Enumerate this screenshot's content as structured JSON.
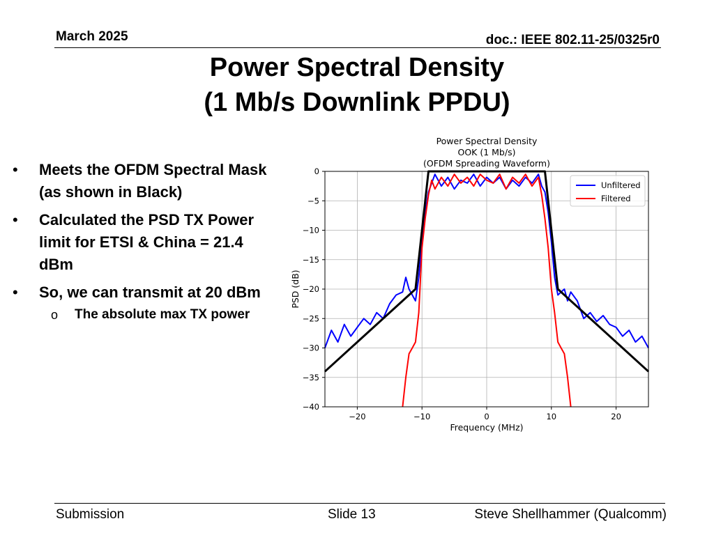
{
  "header": {
    "date": "March 2025",
    "doc": "doc.: IEEE 802.11-25/0325r0"
  },
  "slide": {
    "title_line1": "Power Spectral Density",
    "title_line2": "(1 Mb/s Downlink PPDU)"
  },
  "bullets": [
    "Meets the OFDM Spectral Mask (as shown in Black)",
    "Calculated the PSD TX Power limit for ETSI & China = 21.4 dBm",
    "So, we can transmit at 20 dBm"
  ],
  "sub_bullet": "The absolute max TX power",
  "bullet_glyph": "•",
  "sub_glyph": "o",
  "chart_data": {
    "type": "line",
    "title": [
      "Power Spectral Density",
      "OOK (1 Mb/s)",
      "(OFDM Spreading Waveform)"
    ],
    "xlabel": "Frequency (MHz)",
    "ylabel": "PSD (dB)",
    "xlim": [
      -25,
      25
    ],
    "ylim": [
      -40,
      0
    ],
    "xticks": [
      -20,
      -10,
      0,
      10,
      20
    ],
    "yticks": [
      0,
      -5,
      -10,
      -15,
      -20,
      -25,
      -30,
      -35,
      -40
    ],
    "xtick_labels": [
      "−20",
      "−10",
      "0",
      "10",
      "20"
    ],
    "ytick_labels": [
      "0",
      "−5",
      "−10",
      "−15",
      "−20",
      "−25",
      "−30",
      "−35",
      "−40"
    ],
    "grid": true,
    "legend": {
      "placement": "top-right",
      "entries": [
        "Unfiltered",
        "Filtered"
      ]
    },
    "series": [
      {
        "name": "Unfiltered",
        "color": "#0000ff",
        "x": [
          -25,
          -24,
          -23,
          -22,
          -21,
          -20,
          -19,
          -18,
          -17,
          -16,
          -15,
          -14,
          -13,
          -12.5,
          -12,
          -11.5,
          -11,
          -10.5,
          -10,
          -9.5,
          -9,
          -8.5,
          -8,
          -7,
          -6,
          -5,
          -4,
          -3,
          -2,
          -1,
          0,
          1,
          2,
          3,
          4,
          5,
          6,
          7,
          8,
          8.5,
          9,
          9.5,
          10,
          10.5,
          11,
          11.5,
          12,
          12.5,
          13,
          14,
          15,
          16,
          17,
          18,
          19,
          20,
          21,
          22,
          23,
          24,
          25
        ],
        "y": [
          -30,
          -27,
          -29,
          -26,
          -28,
          -26.5,
          -25,
          -26,
          -24,
          -25,
          -22.5,
          -21,
          -20.5,
          -18,
          -20,
          -21,
          -22,
          -18,
          -12,
          -7,
          -3.5,
          -2,
          -0.5,
          -2.5,
          -1,
          -3,
          -1.5,
          -2,
          -0.5,
          -2.5,
          -1,
          -2,
          -1,
          -3,
          -1.5,
          -2.5,
          -1,
          -2,
          -0.5,
          -2.5,
          -3.5,
          -7,
          -12,
          -18,
          -21,
          -20.5,
          -20,
          -22,
          -20.5,
          -22,
          -25,
          -24,
          -25.5,
          -24.5,
          -26,
          -26.5,
          -28,
          -27,
          -29,
          -28,
          -30
        ]
      },
      {
        "name": "Filtered",
        "color": "#ff0000",
        "x": [
          -13,
          -12.5,
          -12,
          -11.5,
          -11,
          -10.5,
          -10,
          -9.5,
          -9,
          -8.5,
          -8,
          -7,
          -6,
          -5,
          -4,
          -3,
          -2,
          -1,
          0,
          1,
          2,
          3,
          4,
          5,
          6,
          7,
          8,
          8.5,
          9,
          9.5,
          10,
          10.5,
          11,
          11.5,
          12,
          12.5,
          13
        ],
        "y": [
          -40,
          -35,
          -31,
          -30,
          -29,
          -24,
          -13,
          -8,
          -4,
          -1.5,
          -3,
          -1,
          -2.5,
          -0.5,
          -2,
          -1,
          -2.5,
          -0.5,
          -1.5,
          -2,
          -0.5,
          -3,
          -1,
          -2,
          -0.5,
          -2.5,
          -1,
          -4,
          -8,
          -13,
          -20,
          -24,
          -29,
          -30,
          -31,
          -35,
          -40
        ]
      },
      {
        "name": "",
        "color": "#000000",
        "x": [
          -25,
          -11,
          -9,
          9,
          11,
          25
        ],
        "y": [
          -34,
          -20,
          0,
          0,
          -20,
          -34
        ]
      }
    ]
  },
  "footer": {
    "left": "Submission",
    "center": "Slide 13",
    "right": "Steve Shellhammer (Qualcomm)"
  }
}
